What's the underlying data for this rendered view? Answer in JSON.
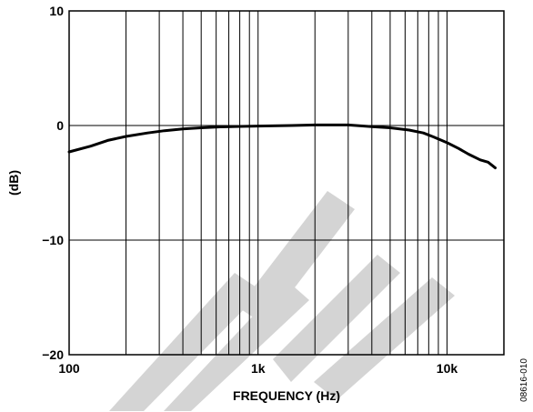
{
  "chart_data": {
    "type": "line",
    "title": "",
    "xlabel": "FREQUENCY (Hz)",
    "ylabel": "(dB)",
    "x_scale": "log",
    "xlim": [
      100,
      20000
    ],
    "ylim": [
      -20,
      10
    ],
    "grid": true,
    "x_ticks": [
      {
        "value": 100,
        "label": "100"
      },
      {
        "value": 1000,
        "label": "1k"
      },
      {
        "value": 10000,
        "label": "10k"
      }
    ],
    "y_ticks": [
      {
        "value": 10,
        "label": "10"
      },
      {
        "value": 0,
        "label": "0"
      },
      {
        "value": -10,
        "label": "−10"
      },
      {
        "value": -20,
        "label": "−20"
      }
    ],
    "series": [
      {
        "x": [
          100,
          130,
          160,
          200,
          260,
          320,
          400,
          500,
          630,
          800,
          1000,
          1500,
          2000,
          2500,
          3000,
          4000,
          5000,
          6300,
          7500,
          8500,
          10000,
          11500,
          13000,
          15000,
          16500,
          18000
        ],
        "y": [
          -2.3,
          -1.8,
          -1.3,
          -0.95,
          -0.65,
          -0.45,
          -0.3,
          -0.2,
          -0.12,
          -0.08,
          -0.05,
          0.0,
          0.05,
          0.05,
          0.05,
          -0.1,
          -0.2,
          -0.4,
          -0.65,
          -1.0,
          -1.5,
          -2.0,
          -2.5,
          -3.0,
          -3.2,
          -3.7
        ],
        "color": "#000000"
      }
    ],
    "figure_code": "08616-010",
    "watermark_text": "LITE"
  }
}
